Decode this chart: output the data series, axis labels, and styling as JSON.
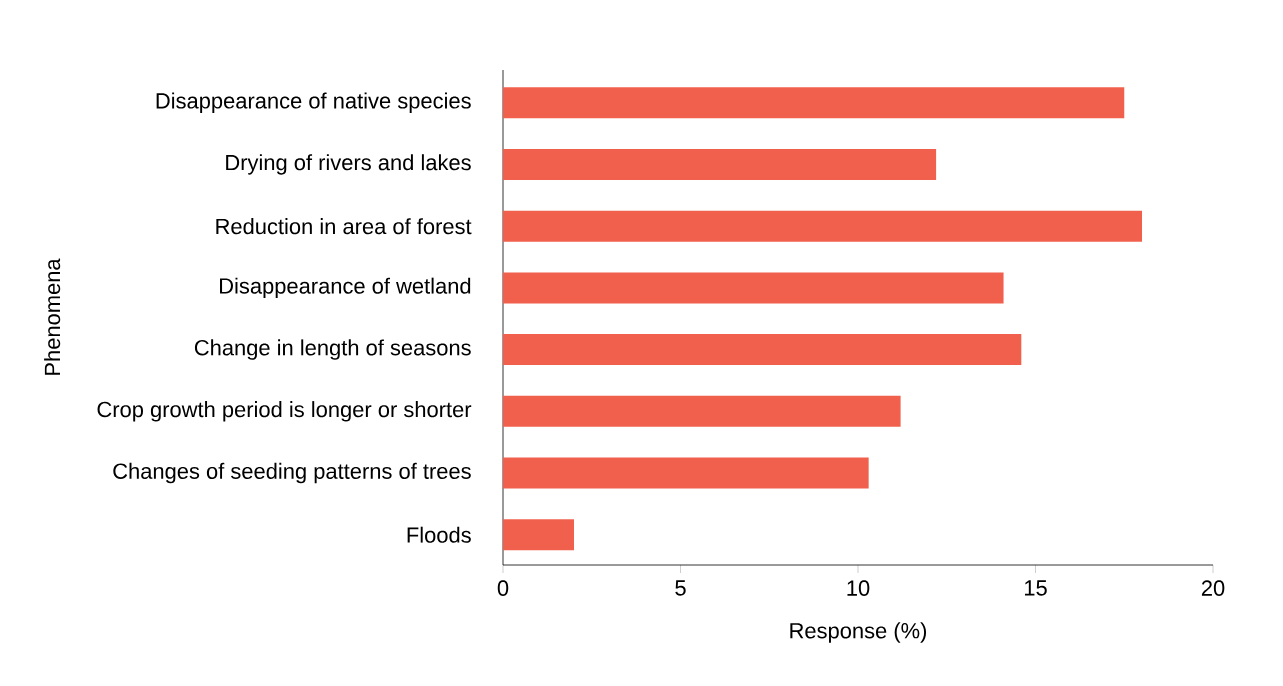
{
  "chart_data": {
    "type": "bar",
    "orientation": "horizontal",
    "xlabel": "Response (%)",
    "ylabel": "Phenomena",
    "categories": [
      "Disappearance of native species",
      "Drying of rivers and lakes",
      "Reduction in area of forest",
      "Disappearance of wetland",
      "Change in length of seasons",
      "Crop growth period is longer or shorter",
      "Changes of seeding patterns of trees",
      "Floods"
    ],
    "values": [
      17.5,
      12.2,
      18.0,
      14.1,
      14.6,
      11.2,
      10.3,
      2.0
    ],
    "color": "#f0604c",
    "xlim": [
      0,
      20
    ],
    "xticks": [
      0,
      5,
      10,
      15,
      20
    ],
    "grid": false
  }
}
